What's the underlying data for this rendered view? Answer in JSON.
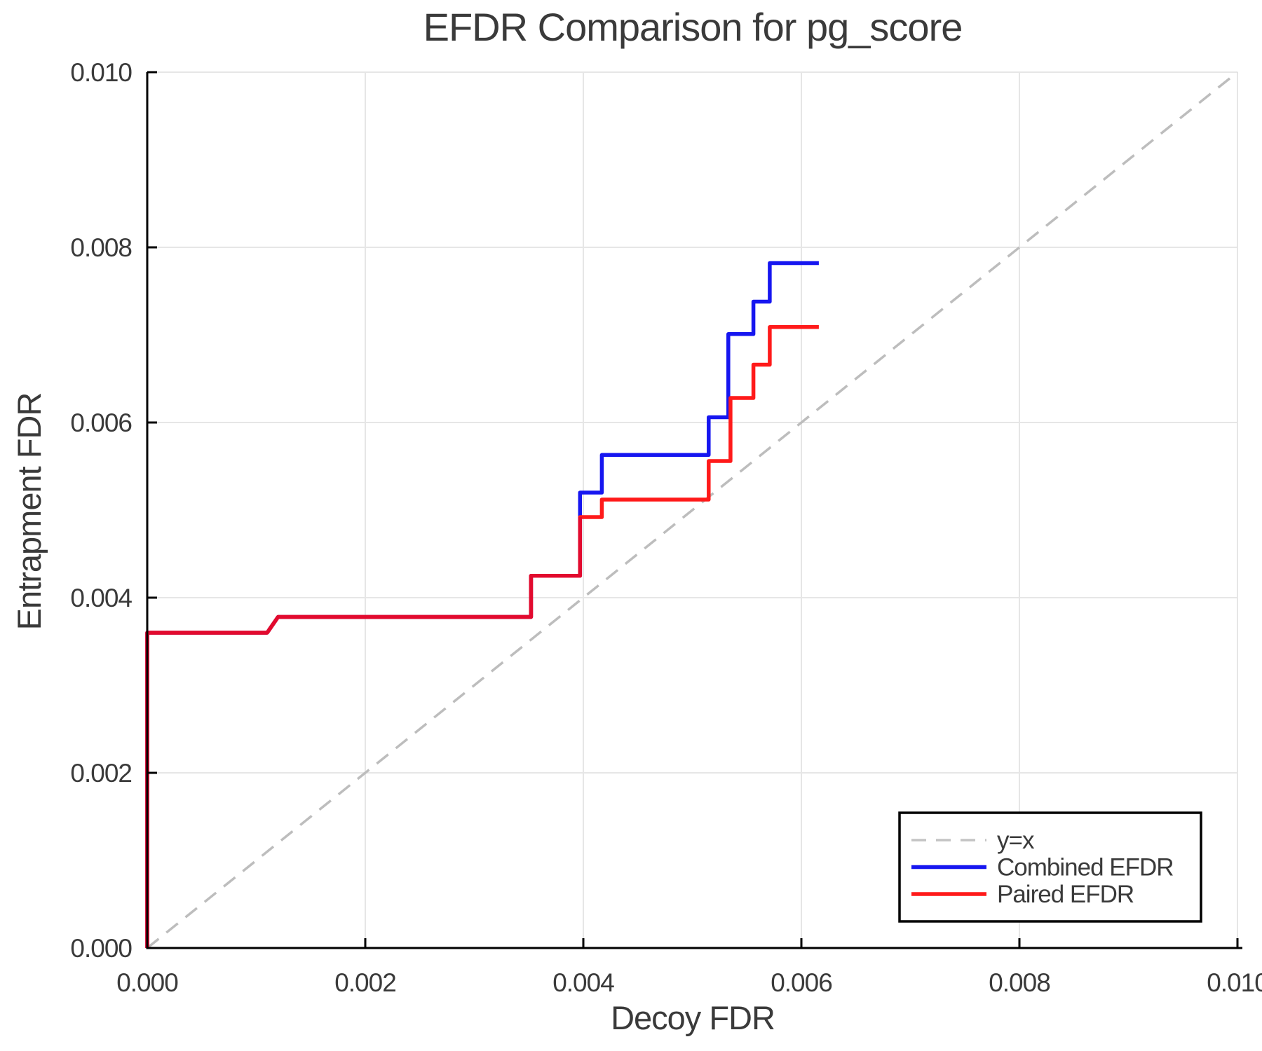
{
  "chart_data": {
    "type": "line",
    "title": "EFDR Comparison for pg_score",
    "xlabel": "Decoy FDR",
    "ylabel": "Entrapment FDR",
    "xlim": [
      0.0,
      0.01
    ],
    "ylim": [
      0.0,
      0.01
    ],
    "grid": true,
    "x_ticks": {
      "values": [
        0.0,
        0.002,
        0.004,
        0.006,
        0.008,
        0.01
      ],
      "labels": [
        "0.000",
        "0.002",
        "0.004",
        "0.006",
        "0.008",
        "0.010"
      ]
    },
    "y_ticks": {
      "values": [
        0.0,
        0.002,
        0.004,
        0.006,
        0.008,
        0.01
      ],
      "labels": [
        "0.000",
        "0.002",
        "0.004",
        "0.006",
        "0.008",
        "0.010"
      ]
    },
    "series": [
      {
        "name": "y=x",
        "style": "dashed",
        "color": "#bdbdbd",
        "width": 3.5,
        "points": [
          [
            0.0,
            0.0
          ],
          [
            0.01,
            0.01
          ]
        ]
      },
      {
        "name": "Combined EFDR",
        "style": "solid",
        "color": "#1616f0",
        "width": 5.5,
        "points": [
          [
            0.0,
            0.0
          ],
          [
            0.0,
            0.0036
          ],
          [
            0.0011,
            0.0036
          ],
          [
            0.0012,
            0.00378
          ],
          [
            0.00352,
            0.00378
          ],
          [
            0.00352,
            0.00425
          ],
          [
            0.00397,
            0.00425
          ],
          [
            0.00397,
            0.0052
          ],
          [
            0.00417,
            0.0052
          ],
          [
            0.00417,
            0.00563
          ],
          [
            0.00515,
            0.00563
          ],
          [
            0.00515,
            0.00606
          ],
          [
            0.00533,
            0.00606
          ],
          [
            0.00533,
            0.00701
          ],
          [
            0.00556,
            0.00701
          ],
          [
            0.00556,
            0.00738
          ],
          [
            0.00571,
            0.00738
          ],
          [
            0.00571,
            0.00782
          ],
          [
            0.00616,
            0.00782
          ]
        ]
      },
      {
        "name": "Paired EFDR",
        "style": "solid",
        "color": "#ff1a1a",
        "width": 5.5,
        "points": [
          [
            0.0,
            0.0
          ],
          [
            0.0,
            0.0036
          ],
          [
            0.0011,
            0.0036
          ],
          [
            0.0012,
            0.00378
          ],
          [
            0.00352,
            0.00378
          ],
          [
            0.00352,
            0.00425
          ],
          [
            0.00397,
            0.00425
          ],
          [
            0.00397,
            0.00492
          ],
          [
            0.00417,
            0.00492
          ],
          [
            0.00417,
            0.00512
          ],
          [
            0.00515,
            0.00512
          ],
          [
            0.00515,
            0.00556
          ],
          [
            0.00535,
            0.00556
          ],
          [
            0.00535,
            0.00628
          ],
          [
            0.00556,
            0.00628
          ],
          [
            0.00556,
            0.00666
          ],
          [
            0.00571,
            0.00666
          ],
          [
            0.00571,
            0.00709
          ],
          [
            0.00616,
            0.00709
          ]
        ]
      }
    ],
    "overlap_segment": {
      "comment_color_where_red_overlaps_blue": true,
      "color": "#e20a2e",
      "width": 5.5,
      "points": [
        [
          0.0,
          0.0
        ],
        [
          0.0,
          0.0036
        ],
        [
          0.0011,
          0.0036
        ],
        [
          0.0012,
          0.00378
        ],
        [
          0.00352,
          0.00378
        ],
        [
          0.00352,
          0.00425
        ],
        [
          0.00397,
          0.00425
        ],
        [
          0.00397,
          0.00492
        ]
      ]
    },
    "legend": {
      "position": "lower right",
      "entries": [
        "y=x",
        "Combined EFDR",
        "Paired EFDR"
      ]
    },
    "colors": {
      "grid": "#e6e6e6",
      "spine": "#000000",
      "text": "#3a3a3a",
      "background": "#ffffff"
    }
  }
}
